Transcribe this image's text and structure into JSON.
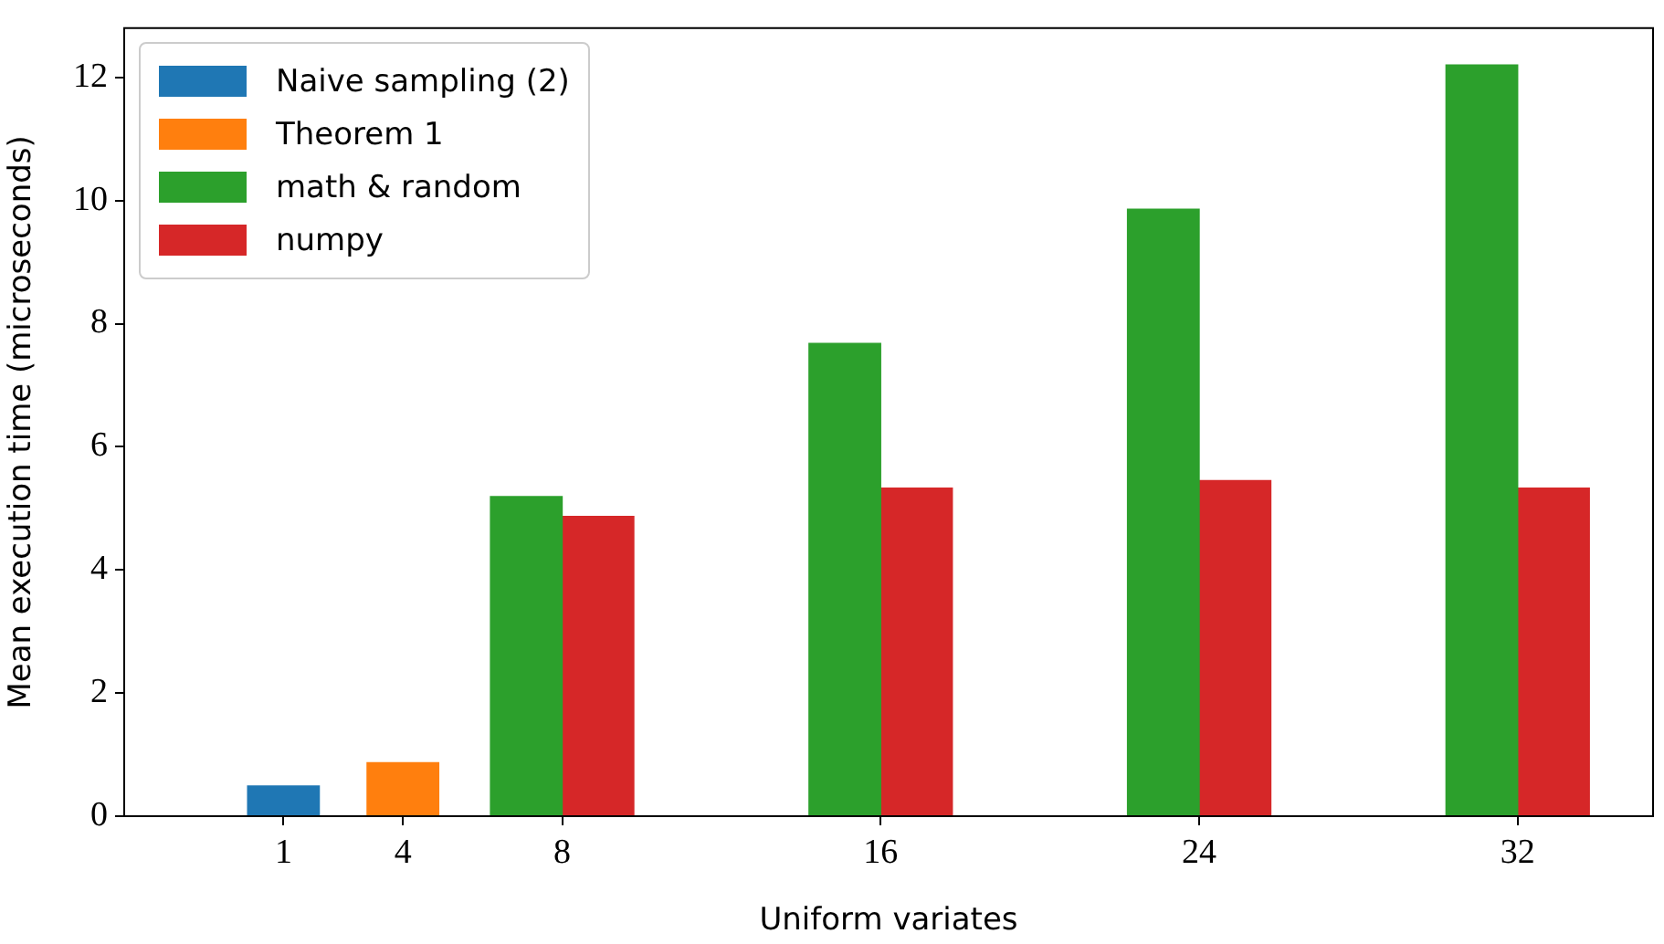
{
  "chart_data": {
    "type": "bar",
    "xlabel": "Uniform variates",
    "ylabel": "Mean execution time (microseconds)",
    "x": [
      1,
      4,
      8,
      16,
      24,
      32
    ],
    "series": [
      {
        "name": "Naive sampling (2)",
        "color": "#1f77b4",
        "values": [
          0.49,
          null,
          null,
          null,
          null,
          null
        ]
      },
      {
        "name": "Theorem 1",
        "color": "#ff7f0e",
        "values": [
          null,
          0.87,
          null,
          null,
          null,
          null
        ]
      },
      {
        "name": "math & random",
        "color": "#2ca02c",
        "values": [
          null,
          null,
          5.19,
          7.68,
          9.86,
          12.2
        ]
      },
      {
        "name": "numpy",
        "color": "#d62728",
        "values": [
          null,
          null,
          4.87,
          5.33,
          5.45,
          5.33
        ]
      }
    ],
    "xlim": [
      -3,
      35.4
    ],
    "xticks": [
      1,
      4,
      8,
      16,
      24,
      32
    ],
    "ylim": [
      0,
      12.8
    ],
    "yticks": [
      0,
      2,
      4,
      6,
      8,
      10,
      12
    ],
    "grid": false,
    "legend": "top left"
  }
}
